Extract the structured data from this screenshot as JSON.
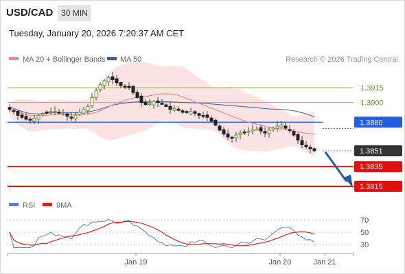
{
  "header": {
    "symbol": "USD/CAD",
    "timeframe": "30 MIN",
    "datetime": "Tuesday, January 20, 2026 7:20:37 AM CET"
  },
  "legend": {
    "ma20_label": "MA 20 + Bollinger Bands",
    "ma50_label": "MA 50",
    "ma20_color": "#f08a8a",
    "ma50_color": "#3a5fa0",
    "credit": "Research © 2026 Trading Central"
  },
  "rsi_legend": {
    "rsi_label": "RSI",
    "ma9_label": "9MA",
    "rsi_color": "#5a7fd8",
    "ma9_color": "#e02020"
  },
  "chart_data": {
    "type": "candlestick",
    "price_range": [
      1.3815,
      1.396
    ],
    "levels": [
      {
        "value": "1.3915",
        "kind": "resistance",
        "color": "#8cc04a"
      },
      {
        "value": "1.3900",
        "kind": "resistance",
        "color": "#8cc04a"
      },
      {
        "value": "1.3880",
        "kind": "pivot",
        "color": "#2060e0"
      },
      {
        "value": "1.3851",
        "kind": "last",
        "color": "#333333"
      },
      {
        "value": "1.3835",
        "kind": "support",
        "color": "#e01010"
      },
      {
        "value": "1.3815",
        "kind": "support",
        "color": "#e01010"
      }
    ],
    "x_labels": [
      "Jan 19",
      "Jan 20",
      "Jan 21"
    ],
    "closes": [
      1.3893,
      1.3891,
      1.3887,
      1.3885,
      1.3883,
      1.3882,
      1.3884,
      1.3887,
      1.3889,
      1.389,
      1.3891,
      1.3891,
      1.389,
      1.3889,
      1.3886,
      1.3884,
      1.3887,
      1.389,
      1.3893,
      1.3896,
      1.3905,
      1.3912,
      1.3918,
      1.3922,
      1.3925,
      1.3923,
      1.392,
      1.3917,
      1.3916,
      1.3915,
      1.391,
      1.3905,
      1.39,
      1.3898,
      1.3899,
      1.3901,
      1.39,
      1.3899,
      1.3896,
      1.3893,
      1.3894,
      1.3892,
      1.389,
      1.389,
      1.3891,
      1.3889,
      1.3887,
      1.3886,
      1.3885,
      1.3881,
      1.3877,
      1.3872,
      1.3868,
      1.3865,
      1.3864,
      1.3867,
      1.3869,
      1.387,
      1.3871,
      1.3872,
      1.3873,
      1.3871,
      1.3869,
      1.3872,
      1.3874,
      1.3876,
      1.3877,
      1.3874,
      1.3872,
      1.3867,
      1.3862,
      1.3857,
      1.3855,
      1.3853,
      1.3851
    ],
    "rsi": {
      "y_ticks": [
        70,
        50,
        30
      ],
      "range": [
        20,
        80
      ]
    }
  }
}
